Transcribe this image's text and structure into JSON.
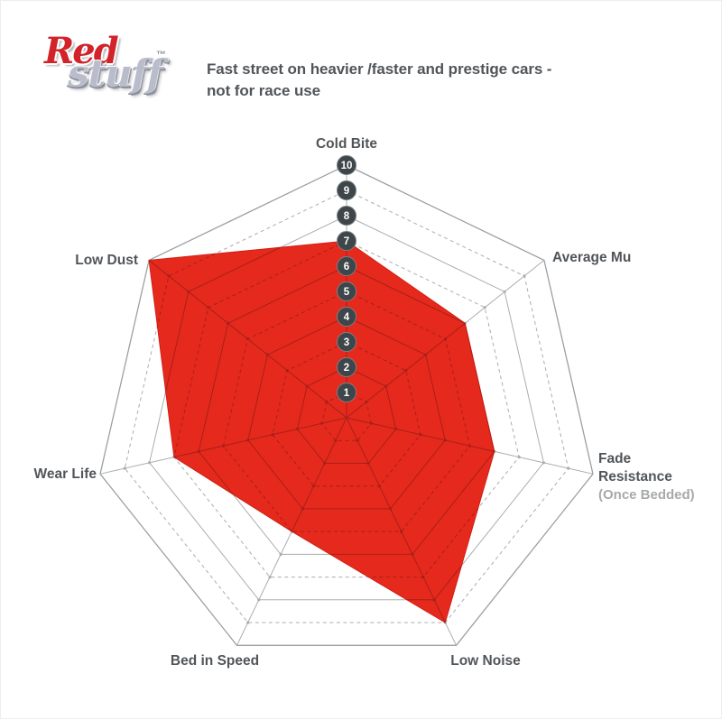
{
  "logo": {
    "red": "Red",
    "stuff": "stuff",
    "tm": "™"
  },
  "description": {
    "line1": "Fast street on heavier /faster and prestige cars -",
    "line2": "not for race use"
  },
  "chart_data": {
    "type": "radar",
    "categories": [
      {
        "lines": [
          "Cold Bite"
        ]
      },
      {
        "lines": [
          "Average Mu"
        ]
      },
      {
        "lines": [
          "Fade",
          "Resistance"
        ],
        "sublabel": "(Once Bedded)"
      },
      {
        "lines": [
          "Low Noise"
        ]
      },
      {
        "lines": [
          "Bed in Speed"
        ]
      },
      {
        "lines": [
          "Wear Life"
        ]
      },
      {
        "lines": [
          "Low Dust"
        ]
      }
    ],
    "values": [
      7,
      6,
      6,
      9,
      5,
      7,
      10
    ],
    "scale": {
      "min": 1,
      "max": 10,
      "ticks": [
        10,
        9,
        8,
        7,
        6,
        5,
        4,
        3,
        2,
        1
      ]
    },
    "grid": "on",
    "legend": "none",
    "colors": {
      "red_fill": "#e5291d",
      "red_edge": "#d21f14",
      "grid_line": "#a9adb0",
      "grid_outer": "#9aa0a3",
      "overlay_line": "#a82018",
      "tick_circle": "#3e464a",
      "tick_circle_edge": "#788087",
      "tick_text": "#ffffff",
      "label": "#515559",
      "sublabel": "#a7a9ac"
    }
  }
}
